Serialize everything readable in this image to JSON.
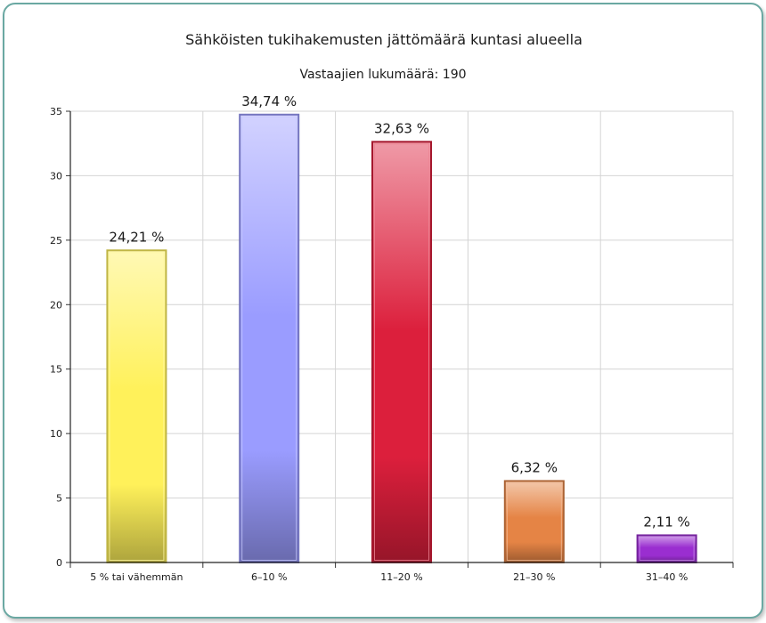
{
  "chart_data": {
    "type": "bar",
    "title": "Sähköisten tukihakemusten jättömäärä kuntasi alueella",
    "subtitle": "Vastaajien lukumäärä: 190",
    "categories": [
      "5 % tai vähemmän",
      "6–10 %",
      "11–20 %",
      "21–30 %",
      "31–40 %"
    ],
    "values": [
      24.21,
      34.74,
      32.63,
      6.32,
      2.11
    ],
    "data_labels": [
      "24,21 %",
      "34,74 %",
      "32,63 %",
      "6,32 %",
      "2,11 %"
    ],
    "ylim": [
      0,
      35
    ],
    "yticks": [
      0,
      5,
      10,
      15,
      20,
      25,
      30,
      35
    ],
    "grid": true,
    "legend": "none",
    "colors": [
      "#fff15a",
      "#9a9cff",
      "#dc1f3c",
      "#e58445",
      "#9a2ed0"
    ]
  }
}
